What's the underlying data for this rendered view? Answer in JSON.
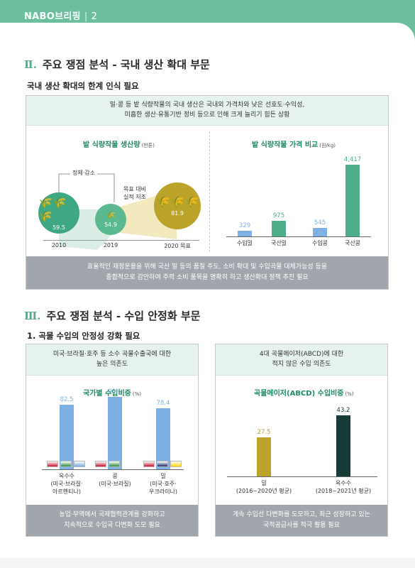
{
  "header": {
    "brand": "NABO브리핑",
    "separator": "|",
    "page_number": "2"
  },
  "section2": {
    "number": "Ⅱ.",
    "title": "주요 쟁점 분석 - 국내 생산 확대 부문",
    "subtitle": "국내 생산 확대의 한계 인식 필요",
    "summary_line1": "밀·콩 등 밭 식량작물의 국내 생산은 국내외 가격차와 낮은 선호도·수익성,",
    "summary_line2": "미흡한 생산·유통기반 정비 등으로 인해 크게 늘리기 힘든 상황",
    "footer_line1": "효율적인 재정운용을 위해 국산 밀 등의 품질 주도, 소비 확대 및 수입곡물 대체가능성 등을",
    "footer_line2": "종합적으로 감안하여 주력 소비 품목을 명확히 하고 생산확대 정책 추진 필요"
  },
  "production_chart": {
    "title": "밭 식량작물 생산량",
    "unit": "(만톤)",
    "annotation_stagnant": "정체·감소",
    "annotation_target_line1": "목표 대비",
    "annotation_target_line2": "실적 저조",
    "colors": {
      "dark": "#3fa882",
      "light": "#5ab98f",
      "target": "#bba32a"
    },
    "chart_data": {
      "type": "bubble",
      "categories": [
        "2010",
        "2019",
        "2020 목표"
      ],
      "values": [
        59.5,
        54.9,
        81.9
      ],
      "title": "밭 식량작물 생산량",
      "unit": "(만톤)"
    }
  },
  "price_chart": {
    "title": "밭 식량작물 가격 비교",
    "unit": "(원/kg)",
    "colors": {
      "import": "#7fb0e4",
      "domestic": "#4dae8a"
    },
    "chart_data": {
      "type": "bar",
      "categories": [
        "수입밀",
        "국산밀",
        "수입콩",
        "국산콩"
      ],
      "values": [
        329,
        975,
        545,
        4417
      ],
      "labels": [
        "329",
        "975",
        "545",
        "4,417"
      ],
      "title": "밭 식량작물 가격 비교",
      "unit": "(원/kg)",
      "ylim": [
        0,
        4800
      ]
    }
  },
  "section3": {
    "number": "Ⅲ.",
    "title": "주요 쟁점 분석 - 수입 안정화 부문",
    "subtitle": "1. 곡물 수입의 안정성 강화 필요"
  },
  "country_box": {
    "header_line1": "미국·브라질·호주 등 소수 곡물수출국에 대한",
    "header_line2": "높은 의존도",
    "footer_line1": "농업·무역에서 국제협력관계를 강화하고",
    "footer_line2": "지속적으로 수입국 다변화 도모 필요",
    "chart_title": "국가별 수입비중",
    "chart_unit": "(%)",
    "bar_color": "#7fb0e4",
    "chart_data": {
      "type": "bar",
      "categories": [
        "옥수수",
        "콩",
        "밀"
      ],
      "category_notes": [
        "(미국·브라질·\n아르헨티나)",
        "(미국·브라질)",
        "(미국·호주·\n우크라이나)"
      ],
      "values": [
        82.5,
        93.1,
        78.4
      ],
      "labels": [
        "82.5",
        "93.1",
        "78.4"
      ],
      "title": "국가별 수입비중",
      "unit": "(%)",
      "ylim": [
        0,
        100
      ]
    }
  },
  "abcd_box": {
    "header_line1": "4대 곡물메이저(ABCD)에 대한",
    "header_line2": "적지 않은 수입 의존도",
    "footer_line1": "계속 수입선 다변화를 도모하고, 최근 성장하고 있는",
    "footer_line2": "국적공급사를 적극 활용 필요",
    "chart_title": "곡물메이저(ABCD) 수입비중",
    "chart_unit": "(%)",
    "colors": {
      "wheat": "#bba32a",
      "corn": "#163a36"
    },
    "chart_data": {
      "type": "bar",
      "categories": [
        "밀",
        "옥수수"
      ],
      "category_notes": [
        "(2016~2020년 평균)",
        "(2018~2021년 평균)"
      ],
      "values": [
        27.5,
        43.2
      ],
      "labels": [
        "27.5",
        "43.2"
      ],
      "title": "곡물메이저(ABCD) 수입비중",
      "unit": "(%)",
      "ylim": [
        0,
        50
      ]
    }
  }
}
